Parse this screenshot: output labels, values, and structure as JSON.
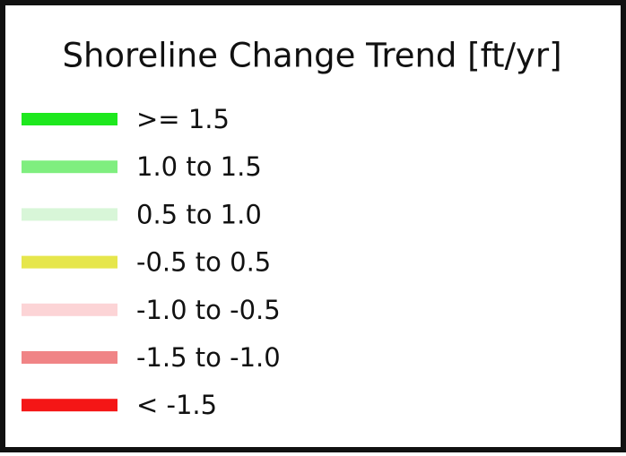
{
  "legend": {
    "title": "Shoreline Change Trend [ft/yr]",
    "items": [
      {
        "label": ">= 1.5",
        "color": "#1ee81e"
      },
      {
        "label": "1.0 to 1.5",
        "color": "#7fee7f"
      },
      {
        "label": "0.5 to 1.0",
        "color": "#d8f6d8"
      },
      {
        "label": "-0.5 to 0.5",
        "color": "#e6e64c"
      },
      {
        "label": "-1.0 to -0.5",
        "color": "#fcd4d6"
      },
      {
        "label": "-1.5 to -1.0",
        "color": "#f08486"
      },
      {
        "label": "< -1.5",
        "color": "#f41616"
      }
    ]
  }
}
